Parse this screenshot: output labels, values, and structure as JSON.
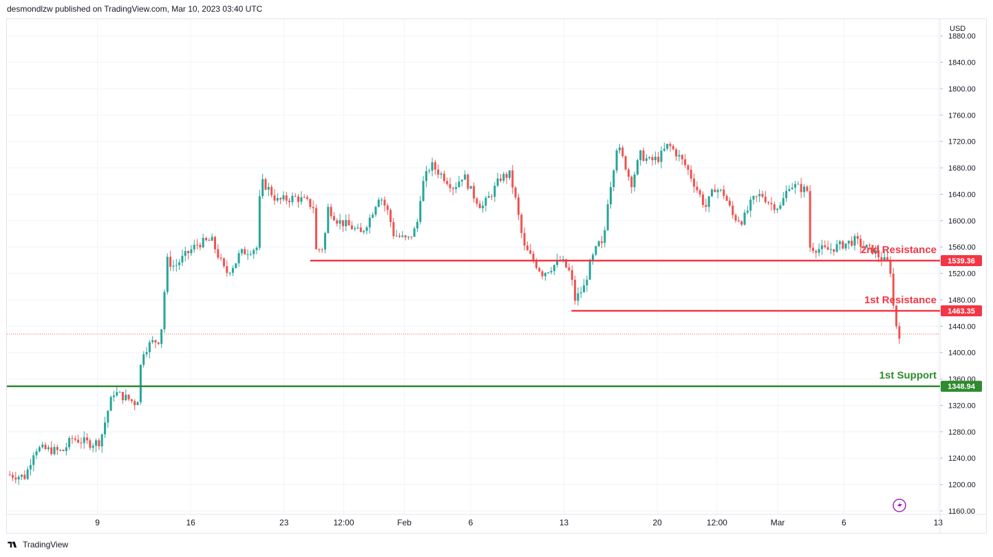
{
  "header": {
    "text": "desmondlzw published on TradingView.com, Mar 10, 2023 03:40 UTC"
  },
  "footer": {
    "brand": "TradingView",
    "logo_icon": "tradingview-logo-icon"
  },
  "colors": {
    "up": "#26a69a",
    "down": "#ef5350",
    "resistance": "#f23645",
    "support": "#2e8b2e",
    "grid": "#f0f3fa",
    "axis_text": "#131722"
  },
  "chart_data": {
    "type": "candlestick",
    "currency": "USD",
    "ylim": [
      1160,
      1900
    ],
    "y_ticks": [
      "1160.00",
      "1200.00",
      "1240.00",
      "1280.00",
      "1320.00",
      "1360.00",
      "1400.00",
      "1440.00",
      "1480.00",
      "1520.00",
      "1560.00",
      "1600.00",
      "1640.00",
      "1680.00",
      "1720.00",
      "1760.00",
      "1800.00",
      "1840.00",
      "1880.00"
    ],
    "x_ticks": [
      "9",
      "16",
      "23",
      "12:00",
      "Feb",
      "6",
      "13",
      "20",
      "12:00",
      "Mar",
      "6",
      "13"
    ],
    "levels": [
      {
        "label": "2nd Resistance",
        "value": 1539.36,
        "price_label": "1539.36",
        "kind": "resistance",
        "start": 0.325
      },
      {
        "label": "1st Resistance",
        "value": 1463.35,
        "price_label": "1463.35",
        "kind": "resistance",
        "start": 0.605
      },
      {
        "label": "1st Support",
        "value": 1348.94,
        "price_label": "1348.94",
        "kind": "support",
        "start": 0.0
      }
    ],
    "last_price": 1428,
    "candles_path": [
      [
        0,
        1215
      ],
      [
        0.02,
        1212
      ],
      [
        0.03,
        1255
      ],
      [
        0.06,
        1250
      ],
      [
        0.07,
        1270
      ],
      [
        0.09,
        1262
      ],
      [
        0.1,
        1265
      ],
      [
        0.11,
        1320
      ],
      [
        0.115,
        1340
      ],
      [
        0.13,
        1330
      ],
      [
        0.14,
        1322
      ],
      [
        0.145,
        1400
      ],
      [
        0.155,
        1415
      ],
      [
        0.165,
        1420
      ],
      [
        0.172,
        1540
      ],
      [
        0.18,
        1530
      ],
      [
        0.19,
        1545
      ],
      [
        0.205,
        1565
      ],
      [
        0.22,
        1570
      ],
      [
        0.235,
        1520
      ],
      [
        0.245,
        1535
      ],
      [
        0.25,
        1550
      ],
      [
        0.27,
        1560
      ],
      [
        0.272,
        1660
      ],
      [
        0.28,
        1650
      ],
      [
        0.29,
        1630
      ],
      [
        0.31,
        1635
      ],
      [
        0.32,
        1630
      ],
      [
        0.33,
        1620
      ],
      [
        0.332,
        1555
      ],
      [
        0.34,
        1560
      ],
      [
        0.345,
        1620
      ],
      [
        0.355,
        1600
      ],
      [
        0.37,
        1590
      ],
      [
        0.38,
        1580
      ],
      [
        0.39,
        1605
      ],
      [
        0.4,
        1640
      ],
      [
        0.41,
        1610
      ],
      [
        0.415,
        1580
      ],
      [
        0.43,
        1570
      ],
      [
        0.44,
        1590
      ],
      [
        0.445,
        1650
      ],
      [
        0.455,
        1685
      ],
      [
        0.47,
        1665
      ],
      [
        0.48,
        1650
      ],
      [
        0.49,
        1670
      ],
      [
        0.5,
        1640
      ],
      [
        0.51,
        1620
      ],
      [
        0.52,
        1640
      ],
      [
        0.53,
        1665
      ],
      [
        0.54,
        1670
      ],
      [
        0.545,
        1640
      ],
      [
        0.55,
        1600
      ],
      [
        0.555,
        1560
      ],
      [
        0.565,
        1540
      ],
      [
        0.575,
        1520
      ],
      [
        0.585,
        1530
      ],
      [
        0.595,
        1540
      ],
      [
        0.605,
        1520
      ],
      [
        0.61,
        1480
      ],
      [
        0.62,
        1500
      ],
      [
        0.625,
        1530
      ],
      [
        0.635,
        1565
      ],
      [
        0.64,
        1560
      ],
      [
        0.645,
        1630
      ],
      [
        0.65,
        1670
      ],
      [
        0.655,
        1715
      ],
      [
        0.665,
        1680
      ],
      [
        0.67,
        1655
      ],
      [
        0.68,
        1700
      ],
      [
        0.69,
        1690
      ],
      [
        0.7,
        1695
      ],
      [
        0.71,
        1715
      ],
      [
        0.72,
        1700
      ],
      [
        0.73,
        1680
      ],
      [
        0.74,
        1650
      ],
      [
        0.75,
        1620
      ],
      [
        0.76,
        1650
      ],
      [
        0.77,
        1640
      ],
      [
        0.78,
        1605
      ],
      [
        0.79,
        1600
      ],
      [
        0.8,
        1630
      ],
      [
        0.81,
        1640
      ],
      [
        0.82,
        1625
      ],
      [
        0.83,
        1620
      ],
      [
        0.84,
        1655
      ],
      [
        0.85,
        1650
      ],
      [
        0.86,
        1645
      ],
      [
        0.862,
        1560
      ],
      [
        0.88,
        1555
      ],
      [
        0.9,
        1565
      ],
      [
        0.91,
        1570
      ],
      [
        0.92,
        1560
      ],
      [
        0.93,
        1555
      ],
      [
        0.94,
        1540
      ],
      [
        0.948,
        1535
      ],
      [
        0.95,
        1485
      ],
      [
        0.955,
        1440
      ],
      [
        0.958,
        1428
      ]
    ]
  }
}
